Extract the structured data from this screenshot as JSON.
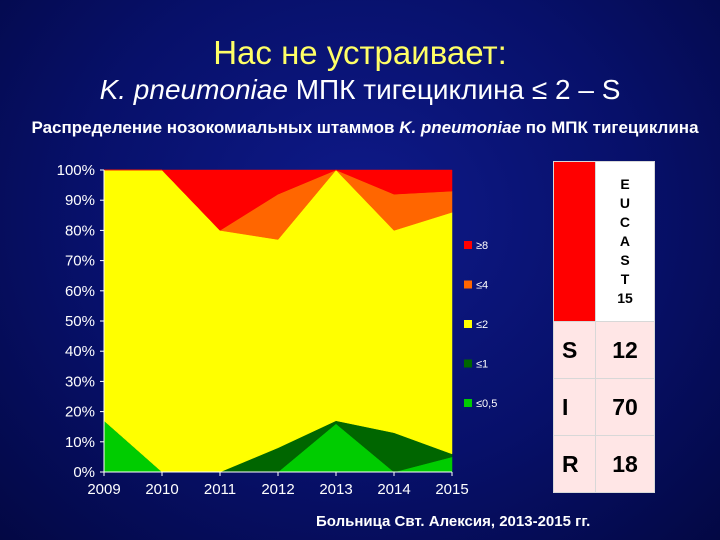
{
  "header": {
    "title_line1": "Нас не устраивает:",
    "title_line2_italic": "K. pneumoniae",
    "title_line2_rest": " МПК тигециклина ≤ 2 – S"
  },
  "chart_title": {
    "part1": "Распределение нозокомиальных штаммов ",
    "italic": "K. pneumoniae",
    "part2": " по МПК тигециклина"
  },
  "chart_data": {
    "type": "area",
    "stacking": "percent",
    "categories": [
      "2009",
      "2010",
      "2011",
      "2012",
      "2013",
      "2014",
      "2015"
    ],
    "series": [
      {
        "name": "≤0,5",
        "color": "#00cc00",
        "values": [
          17,
          0,
          0,
          0,
          16,
          0,
          5
        ]
      },
      {
        "name": "≤1",
        "color": "#006600",
        "values": [
          0,
          0,
          0,
          8,
          1,
          13,
          1
        ]
      },
      {
        "name": "≤2",
        "color": "#ffff00",
        "values": [
          83,
          100,
          80,
          69,
          83,
          67,
          80
        ]
      },
      {
        "name": "≤4",
        "color": "#ff6600",
        "values": [
          0,
          0,
          0,
          15,
          0,
          12,
          7
        ]
      },
      {
        "name": "≥8",
        "color": "#ff0000",
        "values": [
          0,
          0,
          20,
          8,
          0,
          8,
          7
        ]
      }
    ],
    "legend_order": [
      "≥8",
      "≤4",
      "≤2",
      "≤1",
      "≤0,5"
    ],
    "y_ticks": [
      "0%",
      "10%",
      "20%",
      "30%",
      "40%",
      "50%",
      "60%",
      "70%",
      "80%",
      "90%",
      "100%"
    ],
    "ylim": [
      0,
      100
    ],
    "legend_position": "right",
    "grid": false
  },
  "eucast": {
    "header_letters": [
      "E",
      "U",
      "C",
      "A",
      "S",
      "T",
      "15"
    ],
    "rows": [
      {
        "label": "S",
        "value": "12"
      },
      {
        "label": "I",
        "value": "70"
      },
      {
        "label": "R",
        "value": "18"
      }
    ]
  },
  "footer": "Больница Свт. Алексия, 2013-2015 гг."
}
